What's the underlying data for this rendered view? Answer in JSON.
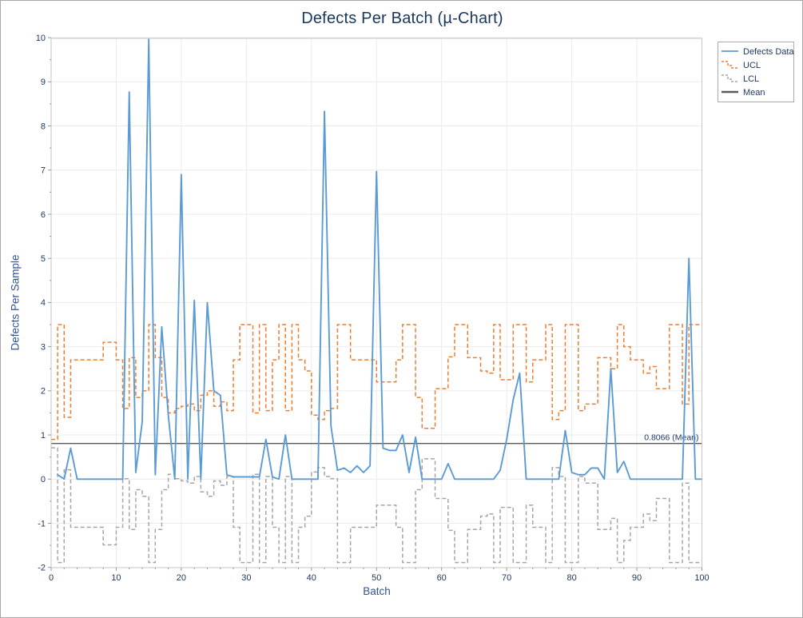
{
  "title": "Defects Per Batch (µ-Chart)",
  "axes": {
    "x_label": "Batch",
    "y_label": "Defects Per Sample"
  },
  "annotation": {
    "mean_text": "0.8066 (Mean)"
  },
  "legend": {
    "items": [
      {
        "label": "Defects Data",
        "style": "line",
        "color": "#5b9bd5"
      },
      {
        "label": "UCL",
        "style": "step-dashed",
        "color": "#ed7d31"
      },
      {
        "label": "LCL",
        "style": "step-dashed",
        "color": "#a6a6a6"
      },
      {
        "label": "Mean",
        "style": "line-thick",
        "color": "#5a5a5a"
      }
    ]
  },
  "colors": {
    "data_line": "#5b9bd5",
    "ucl": "#ed7d31",
    "lcl": "#a6a6a6",
    "mean": "#5a5a5a",
    "grid": "#ebebeb",
    "frame": "#c6c6c6",
    "tick_text": "#1f3864",
    "title_text": "#17365d"
  },
  "chart_data": {
    "type": "line",
    "title": "Defects Per Batch (µ-Chart)",
    "xlabel": "Batch",
    "ylabel": "Defects Per Sample",
    "xlim": [
      0,
      100
    ],
    "ylim": [
      -2,
      10
    ],
    "x_major_tick_step": 10,
    "x_minor_tick_step": 2,
    "y_major_tick_step": 1,
    "y_minor_tick_step": 0.5,
    "grid": "major",
    "legend_position": "outside-top-right",
    "x_start": 1,
    "mean": 0.8066,
    "mean_label": "0.8066 (Mean)",
    "series": [
      {
        "name": "Defects Data",
        "style": "line",
        "dash": false,
        "color": "#5b9bd5",
        "values": [
          0.1,
          0,
          0.7,
          0,
          0,
          0,
          0,
          0,
          0,
          0,
          0,
          8.77,
          0.15,
          1.3,
          9.97,
          0.1,
          3.45,
          1.45,
          0,
          6.9,
          0,
          4.05,
          0,
          4.0,
          2.0,
          1.9,
          0.1,
          0.05,
          0.05,
          0.05,
          0.05,
          0.05,
          0.9,
          0.05,
          0,
          1.0,
          0,
          0,
          0,
          0,
          0,
          8.33,
          1.2,
          0.2,
          0.25,
          0.15,
          0.3,
          0.15,
          0.3,
          6.97,
          0.7,
          0.65,
          0.65,
          1.0,
          0.15,
          0.95,
          0,
          0,
          0,
          0,
          0.35,
          0,
          0,
          0,
          0,
          0,
          0,
          0,
          0.2,
          0.9,
          1.8,
          2.4,
          0,
          0,
          0,
          0,
          0,
          0,
          1.1,
          0.15,
          0.1,
          0.1,
          0.25,
          0.25,
          0,
          2.5,
          0.15,
          0.4,
          0,
          0,
          0,
          0,
          0,
          0,
          0,
          0,
          0,
          5.0,
          0,
          0
        ]
      },
      {
        "name": "UCL",
        "style": "step",
        "dash": true,
        "color": "#ed7d31",
        "values": [
          0.9,
          3.5,
          1.4,
          2.7,
          2.7,
          2.7,
          2.7,
          2.7,
          3.1,
          3.1,
          2.7,
          1.6,
          2.75,
          1.85,
          2.0,
          3.5,
          2.75,
          1.85,
          1.5,
          1.6,
          1.65,
          1.7,
          1.55,
          1.9,
          2.0,
          1.65,
          1.75,
          1.55,
          2.7,
          3.5,
          3.5,
          1.5,
          3.5,
          1.55,
          2.7,
          3.5,
          1.55,
          3.5,
          2.7,
          2.45,
          1.45,
          1.35,
          1.55,
          1.6,
          3.5,
          3.5,
          2.7,
          2.7,
          2.7,
          2.7,
          2.2,
          2.2,
          2.2,
          2.7,
          3.5,
          3.5,
          1.85,
          1.15,
          1.15,
          2.05,
          2.05,
          2.77,
          3.5,
          3.5,
          2.75,
          2.75,
          2.45,
          2.4,
          3.5,
          2.25,
          2.25,
          3.5,
          3.5,
          2.2,
          2.7,
          2.7,
          3.5,
          1.35,
          1.55,
          3.5,
          3.5,
          1.55,
          1.7,
          1.7,
          2.75,
          2.75,
          2.5,
          3.5,
          3.0,
          2.7,
          2.7,
          2.4,
          2.55,
          2.05,
          2.05,
          3.5,
          3.5,
          1.7,
          3.5,
          3.5
        ]
      },
      {
        "name": "LCL",
        "style": "step",
        "dash": true,
        "color": "#a6a6a6",
        "values": [
          0.71,
          -1.89,
          0.21,
          -1.09,
          -1.09,
          -1.09,
          -1.09,
          -1.09,
          -1.49,
          -1.49,
          -1.09,
          0.01,
          -1.14,
          -0.24,
          -0.39,
          -1.89,
          -1.14,
          -0.24,
          0.11,
          0.01,
          -0.04,
          -0.09,
          0.06,
          -0.29,
          -0.39,
          -0.04,
          -0.14,
          0.06,
          -1.09,
          -1.89,
          -1.89,
          0.11,
          -1.89,
          0.06,
          -1.09,
          -1.89,
          0.06,
          -1.89,
          -1.09,
          -0.84,
          0.16,
          0.26,
          0.06,
          0.01,
          -1.89,
          -1.89,
          -1.09,
          -1.09,
          -1.09,
          -1.09,
          -0.59,
          -0.59,
          -0.59,
          -1.09,
          -1.89,
          -1.89,
          -0.24,
          0.46,
          0.46,
          -0.44,
          -0.44,
          -1.16,
          -1.89,
          -1.89,
          -1.14,
          -1.14,
          -0.84,
          -0.79,
          -1.89,
          -0.64,
          -0.64,
          -1.89,
          -1.89,
          -0.59,
          -1.09,
          -1.09,
          -1.89,
          0.26,
          0.06,
          -1.89,
          -1.89,
          0.06,
          -0.09,
          -0.09,
          -1.14,
          -1.14,
          -0.89,
          -1.89,
          -1.39,
          -1.09,
          -1.09,
          -0.79,
          -0.94,
          -0.44,
          -0.44,
          -1.89,
          -1.89,
          -0.09,
          -1.89,
          -1.89
        ]
      },
      {
        "name": "Mean",
        "style": "hline",
        "dash": false,
        "color": "#5a5a5a",
        "value": 0.8066
      }
    ]
  }
}
